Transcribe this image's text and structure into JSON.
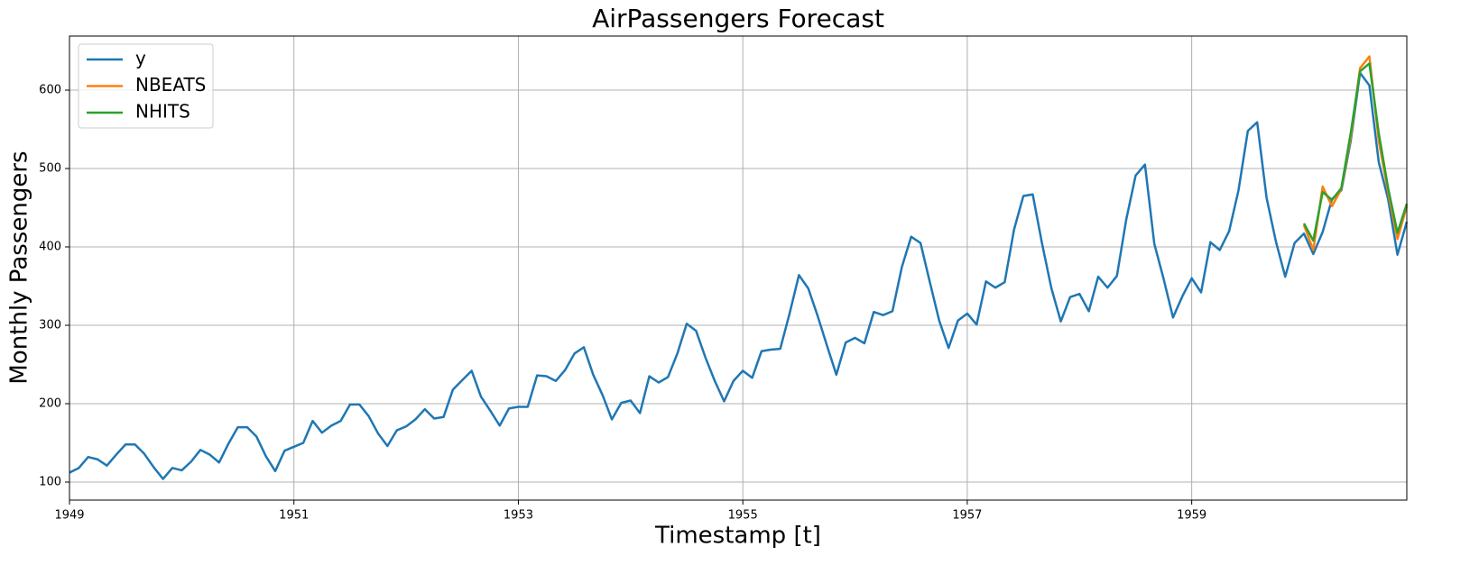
{
  "chart_data": {
    "type": "line",
    "title": "AirPassengers Forecast",
    "x_label": "Timestamp [t]",
    "y_label": "Monthly Passengers",
    "x": [
      "1949-01",
      "1949-02",
      "1949-03",
      "1949-04",
      "1949-05",
      "1949-06",
      "1949-07",
      "1949-08",
      "1949-09",
      "1949-10",
      "1949-11",
      "1949-12",
      "1950-01",
      "1950-02",
      "1950-03",
      "1950-04",
      "1950-05",
      "1950-06",
      "1950-07",
      "1950-08",
      "1950-09",
      "1950-10",
      "1950-11",
      "1950-12",
      "1951-01",
      "1951-02",
      "1951-03",
      "1951-04",
      "1951-05",
      "1951-06",
      "1951-07",
      "1951-08",
      "1951-09",
      "1951-10",
      "1951-11",
      "1951-12",
      "1952-01",
      "1952-02",
      "1952-03",
      "1952-04",
      "1952-05",
      "1952-06",
      "1952-07",
      "1952-08",
      "1952-09",
      "1952-10",
      "1952-11",
      "1952-12",
      "1953-01",
      "1953-02",
      "1953-03",
      "1953-04",
      "1953-05",
      "1953-06",
      "1953-07",
      "1953-08",
      "1953-09",
      "1953-10",
      "1953-11",
      "1953-12",
      "1954-01",
      "1954-02",
      "1954-03",
      "1954-04",
      "1954-05",
      "1954-06",
      "1954-07",
      "1954-08",
      "1954-09",
      "1954-10",
      "1954-11",
      "1954-12",
      "1955-01",
      "1955-02",
      "1955-03",
      "1955-04",
      "1955-05",
      "1955-06",
      "1955-07",
      "1955-08",
      "1955-09",
      "1955-10",
      "1955-11",
      "1955-12",
      "1956-01",
      "1956-02",
      "1956-03",
      "1956-04",
      "1956-05",
      "1956-06",
      "1956-07",
      "1956-08",
      "1956-09",
      "1956-10",
      "1956-11",
      "1956-12",
      "1957-01",
      "1957-02",
      "1957-03",
      "1957-04",
      "1957-05",
      "1957-06",
      "1957-07",
      "1957-08",
      "1957-09",
      "1957-10",
      "1957-11",
      "1957-12",
      "1958-01",
      "1958-02",
      "1958-03",
      "1958-04",
      "1958-05",
      "1958-06",
      "1958-07",
      "1958-08",
      "1958-09",
      "1958-10",
      "1958-11",
      "1958-12",
      "1959-01",
      "1959-02",
      "1959-03",
      "1959-04",
      "1959-05",
      "1959-06",
      "1959-07",
      "1959-08",
      "1959-09",
      "1959-10",
      "1959-11",
      "1959-12",
      "1960-01",
      "1960-02",
      "1960-03",
      "1960-04",
      "1960-05",
      "1960-06",
      "1960-07",
      "1960-08",
      "1960-09",
      "1960-10",
      "1960-11",
      "1960-12"
    ],
    "series": [
      {
        "name": "y",
        "color": "#1f77b4",
        "values": [
          112,
          118,
          132,
          129,
          121,
          135,
          148,
          148,
          136,
          119,
          104,
          118,
          115,
          126,
          141,
          135,
          125,
          149,
          170,
          170,
          158,
          133,
          114,
          140,
          145,
          150,
          178,
          163,
          172,
          178,
          199,
          199,
          184,
          162,
          146,
          166,
          171,
          180,
          193,
          181,
          183,
          218,
          230,
          242,
          209,
          191,
          172,
          194,
          196,
          196,
          236,
          235,
          229,
          243,
          264,
          272,
          237,
          211,
          180,
          201,
          204,
          188,
          235,
          227,
          234,
          264,
          302,
          293,
          259,
          229,
          203,
          229,
          242,
          233,
          267,
          269,
          270,
          315,
          364,
          347,
          312,
          274,
          237,
          278,
          284,
          277,
          317,
          313,
          318,
          374,
          413,
          405,
          355,
          306,
          271,
          306,
          315,
          301,
          356,
          348,
          355,
          422,
          465,
          467,
          404,
          347,
          305,
          336,
          340,
          318,
          362,
          348,
          363,
          435,
          491,
          505,
          404,
          359,
          310,
          337,
          360,
          342,
          406,
          396,
          420,
          472,
          548,
          559,
          463,
          407,
          362,
          405,
          417,
          391,
          419,
          461,
          472,
          535,
          622,
          606,
          508,
          461,
          390,
          432
        ]
      },
      {
        "name": "NBEATS",
        "color": "#ff7f0e",
        "values": [
          null,
          null,
          null,
          null,
          null,
          null,
          null,
          null,
          null,
          null,
          null,
          null,
          null,
          null,
          null,
          null,
          null,
          null,
          null,
          null,
          null,
          null,
          null,
          null,
          null,
          null,
          null,
          null,
          null,
          null,
          null,
          null,
          null,
          null,
          null,
          null,
          null,
          null,
          null,
          null,
          null,
          null,
          null,
          null,
          null,
          null,
          null,
          null,
          null,
          null,
          null,
          null,
          null,
          null,
          null,
          null,
          null,
          null,
          null,
          null,
          null,
          null,
          null,
          null,
          null,
          null,
          null,
          null,
          null,
          null,
          null,
          null,
          null,
          null,
          null,
          null,
          null,
          null,
          null,
          null,
          null,
          null,
          null,
          null,
          null,
          null,
          null,
          null,
          null,
          null,
          null,
          null,
          null,
          null,
          null,
          null,
          null,
          null,
          null,
          null,
          null,
          null,
          null,
          null,
          null,
          null,
          null,
          null,
          null,
          null,
          null,
          null,
          null,
          null,
          null,
          null,
          null,
          null,
          null,
          null,
          null,
          null,
          null,
          null,
          null,
          null,
          null,
          null,
          null,
          null,
          null,
          null,
          428,
          396,
          477,
          452,
          474,
          540,
          628,
          643,
          535,
          470,
          410,
          452
        ]
      },
      {
        "name": "NHITS",
        "color": "#2ca02c",
        "values": [
          null,
          null,
          null,
          null,
          null,
          null,
          null,
          null,
          null,
          null,
          null,
          null,
          null,
          null,
          null,
          null,
          null,
          null,
          null,
          null,
          null,
          null,
          null,
          null,
          null,
          null,
          null,
          null,
          null,
          null,
          null,
          null,
          null,
          null,
          null,
          null,
          null,
          null,
          null,
          null,
          null,
          null,
          null,
          null,
          null,
          null,
          null,
          null,
          null,
          null,
          null,
          null,
          null,
          null,
          null,
          null,
          null,
          null,
          null,
          null,
          null,
          null,
          null,
          null,
          null,
          null,
          null,
          null,
          null,
          null,
          null,
          null,
          null,
          null,
          null,
          null,
          null,
          null,
          null,
          null,
          null,
          null,
          null,
          null,
          null,
          null,
          null,
          null,
          null,
          null,
          null,
          null,
          null,
          null,
          null,
          null,
          null,
          null,
          null,
          null,
          null,
          null,
          null,
          null,
          null,
          null,
          null,
          null,
          null,
          null,
          null,
          null,
          null,
          null,
          null,
          null,
          null,
          null,
          null,
          null,
          null,
          null,
          null,
          null,
          null,
          null,
          null,
          null,
          null,
          null,
          null,
          null,
          430,
          408,
          470,
          460,
          475,
          545,
          624,
          634,
          545,
          475,
          418,
          455
        ]
      }
    ],
    "xlim": [
      "1949-01",
      "1960-12"
    ],
    "xticks": [
      {
        "value": "1949-01",
        "label": "1949"
      },
      {
        "value": "1951-01",
        "label": "1951"
      },
      {
        "value": "1953-01",
        "label": "1953"
      },
      {
        "value": "1955-01",
        "label": "1955"
      },
      {
        "value": "1957-01",
        "label": "1957"
      },
      {
        "value": "1959-01",
        "label": "1959"
      }
    ],
    "ylim": [
      77,
      669
    ],
    "yticks": [
      100,
      200,
      300,
      400,
      500,
      600
    ],
    "grid": true,
    "legend": "upper left"
  }
}
